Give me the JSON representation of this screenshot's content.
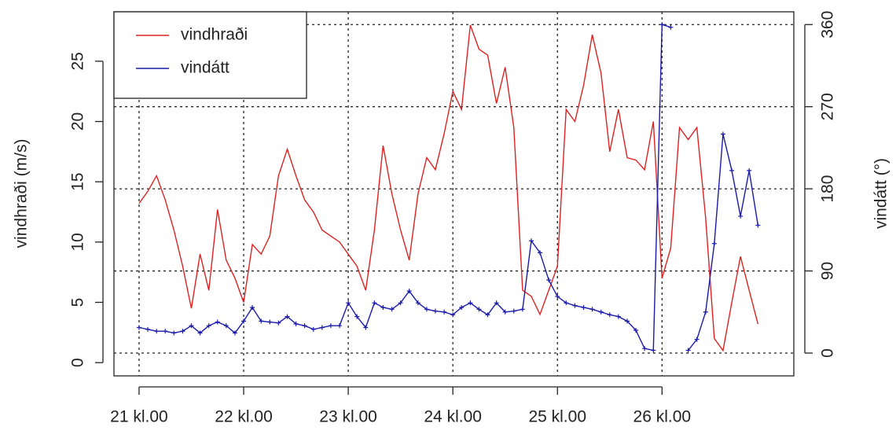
{
  "chart_data": {
    "type": "line",
    "ylabel": "vindhraði (m/s)",
    "y2label": "vindátt (°)",
    "x": [
      21,
      21.083,
      21.167,
      21.25,
      21.333,
      21.417,
      21.5,
      21.583,
      21.667,
      21.75,
      21.833,
      21.917,
      22,
      22.083,
      22.167,
      22.25,
      22.333,
      22.417,
      22.5,
      22.583,
      22.667,
      22.75,
      22.833,
      22.917,
      23,
      23.083,
      23.167,
      23.25,
      23.333,
      23.417,
      23.5,
      23.583,
      23.667,
      23.75,
      23.833,
      23.917,
      24,
      24.083,
      24.167,
      24.25,
      24.333,
      24.417,
      24.5,
      24.583,
      24.667,
      24.75,
      24.833,
      24.917,
      25,
      25.083,
      25.167,
      25.25,
      25.333,
      25.417,
      25.5,
      25.583,
      25.667,
      25.75,
      25.833,
      25.917,
      26,
      26.083,
      26.167,
      26.25,
      26.333,
      26.417,
      26.5,
      26.583,
      26.667,
      26.75,
      26.833,
      26.917
    ],
    "series": [
      {
        "name": "vindhraði",
        "color": "#dd2222",
        "axis": "y",
        "markers": false,
        "values": [
          13.2,
          14.2,
          15.5,
          13.5,
          11,
          8,
          4.5,
          9,
          6,
          12.7,
          8.5,
          7,
          5,
          9.8,
          9,
          10.5,
          15.5,
          17.7,
          15.5,
          13.5,
          12.5,
          11,
          10.5,
          10,
          9,
          8,
          6,
          11,
          18,
          14,
          11,
          8.5,
          14,
          17,
          16,
          19,
          22.5,
          21,
          28,
          26,
          25.5,
          21.5,
          24.5,
          19.5,
          6,
          5.5,
          4,
          6,
          8,
          21,
          20,
          23,
          27.2,
          24,
          17.5,
          21,
          17,
          16.8,
          16,
          20,
          7,
          9.5,
          19.5,
          18.5,
          19.5,
          12,
          2,
          1,
          5,
          8.8,
          6,
          3.2
        ]
      },
      {
        "name": "vindátt",
        "color": "#1a1aaa",
        "axis": "y2",
        "markers": true,
        "values": [
          28,
          26,
          24,
          24,
          22,
          24,
          30,
          22,
          30,
          34,
          30,
          22,
          35,
          50,
          35,
          34,
          33,
          40,
          32,
          30,
          26,
          28,
          30,
          30,
          55,
          40,
          28,
          55,
          50,
          48,
          55,
          68,
          55,
          48,
          46,
          45,
          42,
          50,
          55,
          48,
          42,
          55,
          45,
          46,
          48,
          123,
          110,
          80,
          62,
          55,
          52,
          50,
          48,
          45,
          42,
          40,
          35,
          25,
          5,
          3,
          360,
          357,
          null,
          3,
          15,
          45,
          120,
          240,
          200,
          150,
          200,
          140
        ]
      }
    ],
    "xlim": [
      20.76,
      27.26
    ],
    "xticks": [
      {
        "value": 21,
        "label": "21 kl.00"
      },
      {
        "value": 22,
        "label": "22 kl.00"
      },
      {
        "value": 23,
        "label": "23 kl.00"
      },
      {
        "value": 24,
        "label": "24 kl.00"
      },
      {
        "value": 25,
        "label": "25 kl.00"
      },
      {
        "value": 26,
        "label": "26 kl.00"
      }
    ],
    "ylim": [
      -1.1,
      29.1
    ],
    "yticks": [
      0,
      5,
      10,
      15,
      20,
      25
    ],
    "y2lim": [
      -25,
      374
    ],
    "y2ticks": [
      0,
      90,
      180,
      270,
      360
    ],
    "grid": true,
    "legend": "top-left"
  }
}
